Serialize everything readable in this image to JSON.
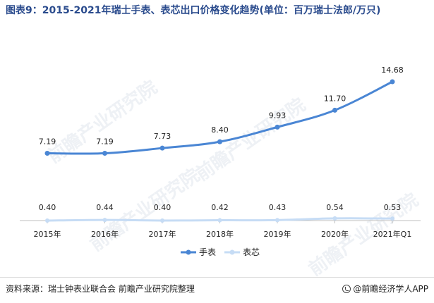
{
  "title": "图表9：2015-2021年瑞士手表、表芯出口价格变化趋势(单位：百万瑞士法郎/万只)",
  "footer": {
    "source": "资料来源：瑞士钟表业联合会 前瞻产业研究院整理",
    "brand": "@前瞻经济学人APP"
  },
  "watermark": "前瞻产业研究院",
  "colors": {
    "watch": "#4a86d4",
    "movement": "#c6dcf5",
    "axis": "#bfbfbf",
    "title": "#2a4b8d"
  },
  "chart_data": {
    "type": "line",
    "categories": [
      "2015年",
      "2016年",
      "2017年",
      "2018年",
      "2019年",
      "2020年",
      "2021年Q1"
    ],
    "series": [
      {
        "name": "手表",
        "values": [
          7.19,
          7.19,
          7.73,
          8.4,
          9.93,
          11.7,
          14.68
        ],
        "labels": [
          "7.19",
          "7.19",
          "7.73",
          "8.40",
          "9.93",
          "11.70",
          "14.68"
        ]
      },
      {
        "name": "表芯",
        "values": [
          0.4,
          0.44,
          0.4,
          0.42,
          0.43,
          0.54,
          0.53
        ],
        "labels": [
          "0.40",
          "0.44",
          "0.40",
          "0.42",
          "0.43",
          "0.54",
          "0.53"
        ]
      }
    ],
    "ylim": [
      0,
      16
    ],
    "grid": false,
    "legend": "bottom-center"
  }
}
